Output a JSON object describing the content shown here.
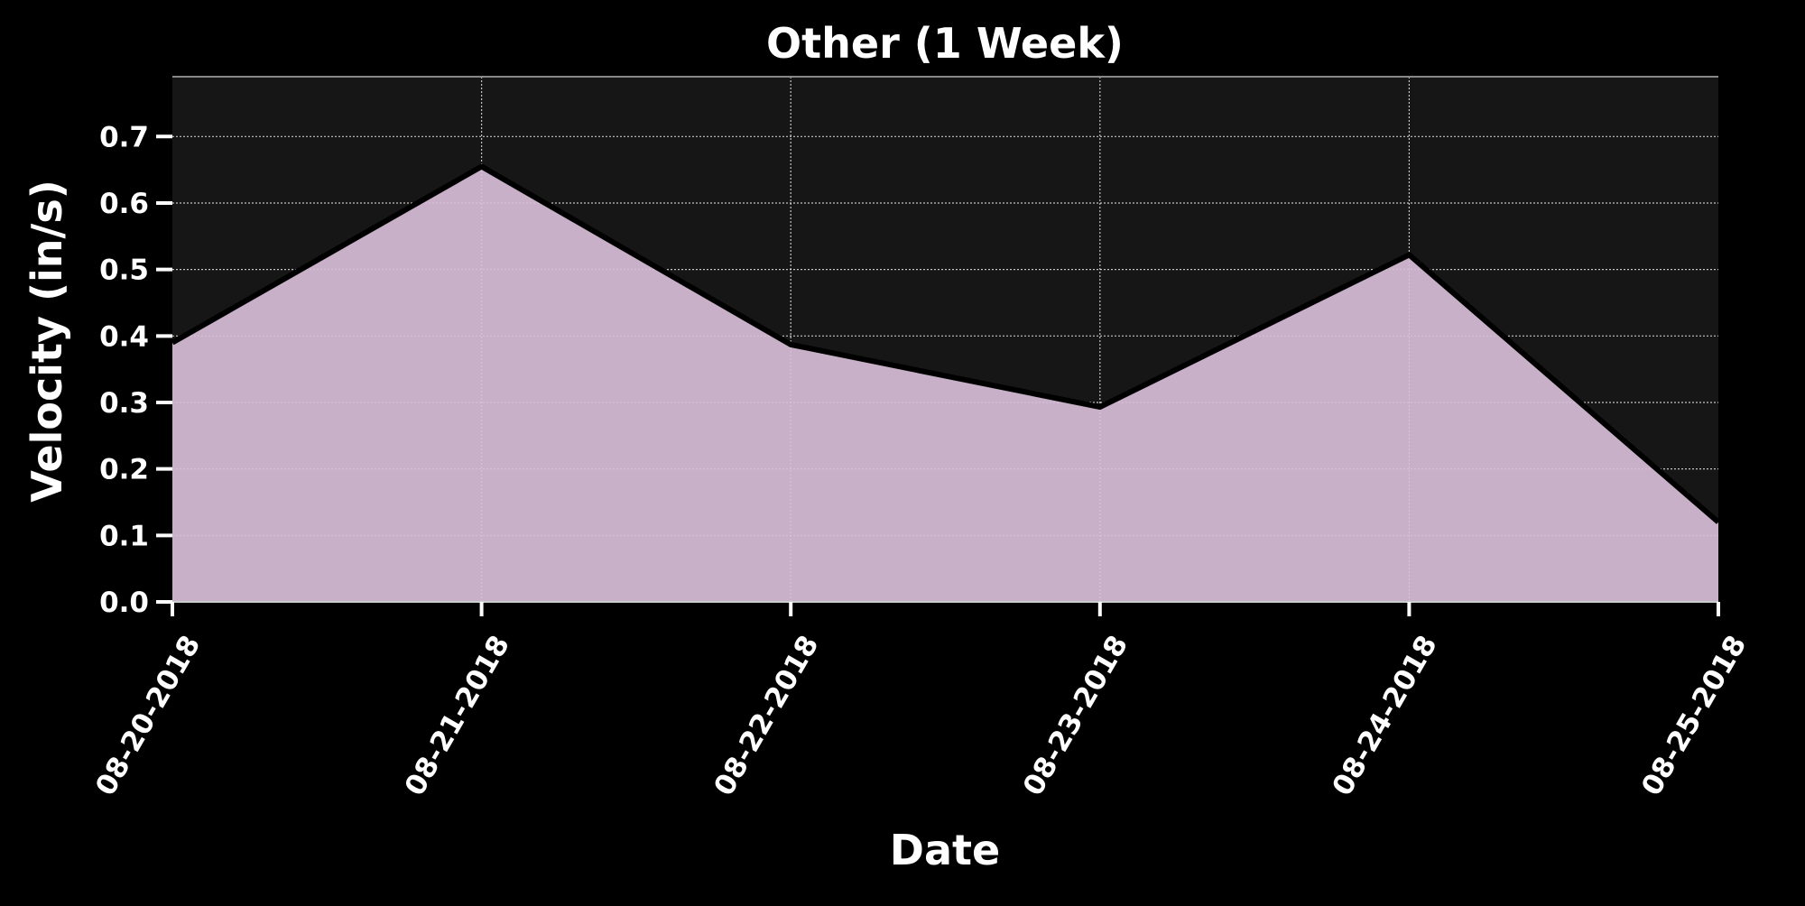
{
  "chart_data": {
    "type": "area",
    "title": "Other (1 Week)",
    "xlabel": "Date",
    "ylabel": "Velocity (in/s)",
    "x": [
      "08-20-2018",
      "08-21-2018",
      "08-22-2018",
      "08-23-2018",
      "08-24-2018",
      "08-25-2018"
    ],
    "series": [
      {
        "values": [
          0.39,
          0.655,
          0.387,
          0.293,
          0.522,
          0.12
        ]
      }
    ],
    "yticks": [
      "0.0",
      "0.1",
      "0.2",
      "0.3",
      "0.4",
      "0.5",
      "0.6",
      "0.7"
    ],
    "ylim": [
      0,
      0.79
    ],
    "grid": true,
    "colors": {
      "background": "#000000",
      "plot_background": "#161616",
      "fill": "#d8bfd8",
      "line": "#000000",
      "grid": "#ffffff",
      "text": "#ffffff"
    }
  }
}
